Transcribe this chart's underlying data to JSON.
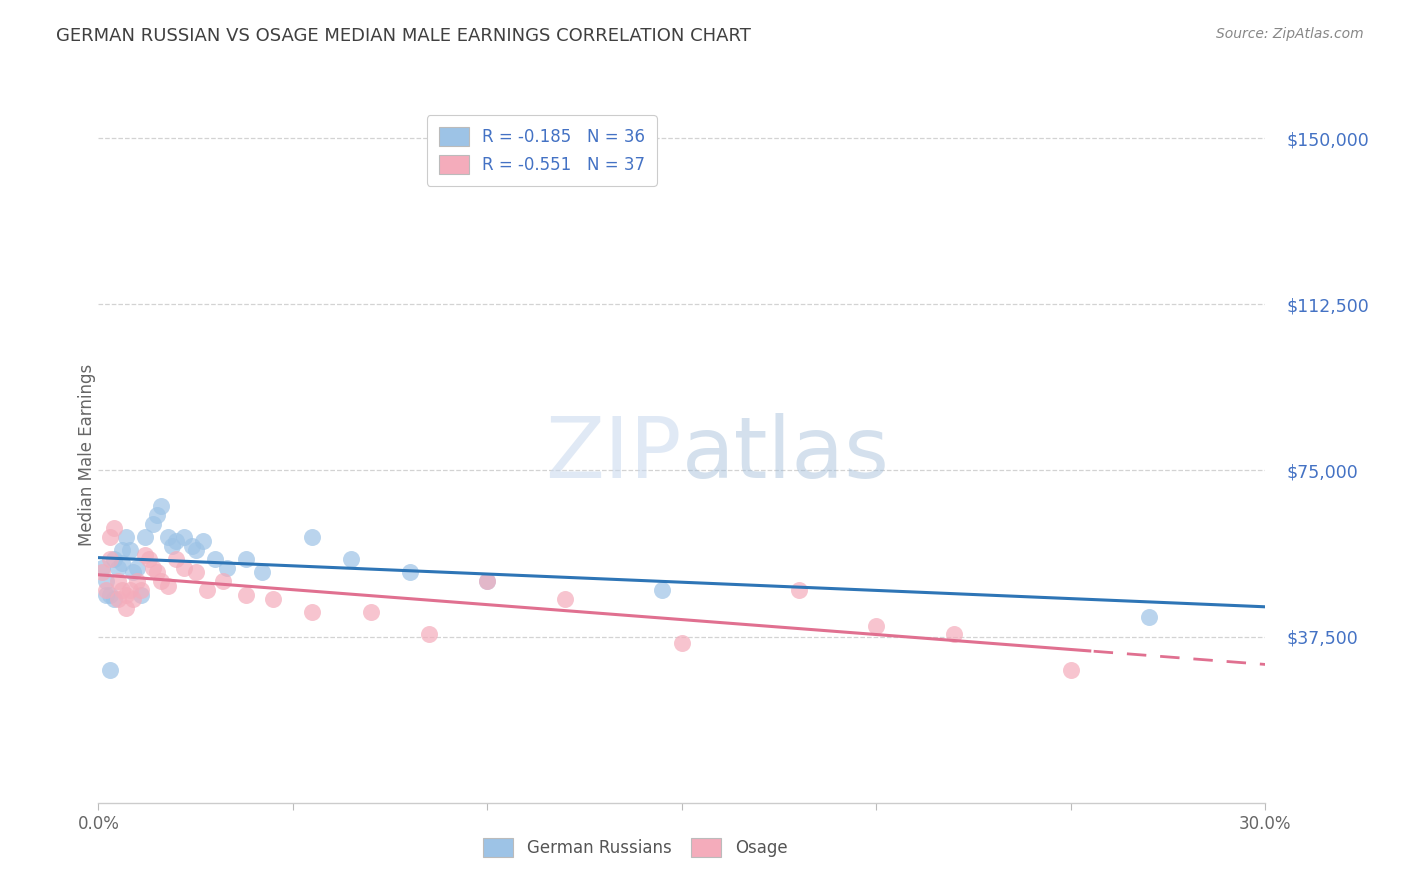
{
  "title": "GERMAN RUSSIAN VS OSAGE MEDIAN MALE EARNINGS CORRELATION CHART",
  "source": "Source: ZipAtlas.com",
  "ylabel": "Median Male Earnings",
  "xlim": [
    0.0,
    0.3
  ],
  "ylim": [
    0,
    157000
  ],
  "yticks": [
    37500,
    75000,
    112500,
    150000
  ],
  "xticks": [
    0.0,
    0.05,
    0.1,
    0.15,
    0.2,
    0.25,
    0.3
  ],
  "xtick_labels": [
    "0.0%",
    "",
    "",
    "",
    "",
    "",
    "30.0%"
  ],
  "ytick_labels": [
    "$37,500",
    "$75,000",
    "$112,500",
    "$150,000"
  ],
  "legend_entries_label": [
    "R = -0.185   N = 36",
    "R = -0.551   N = 37"
  ],
  "legend_bottom": [
    "German Russians",
    "Osage"
  ],
  "blue_scatter_color": "#9dc3e6",
  "pink_scatter_color": "#f4acbb",
  "blue_line_color": "#2e75b6",
  "pink_line_color": "#e07090",
  "background_color": "#ffffff",
  "grid_color": "#c8c8c8",
  "title_color": "#404040",
  "source_color": "#888888",
  "ytick_color": "#4472c4",
  "xtick_color": "#666666",
  "watermark_color": "#d6e4f5",
  "blue_points_x": [
    0.001,
    0.002,
    0.002,
    0.003,
    0.004,
    0.004,
    0.005,
    0.006,
    0.006,
    0.007,
    0.008,
    0.009,
    0.01,
    0.011,
    0.012,
    0.014,
    0.015,
    0.016,
    0.018,
    0.019,
    0.02,
    0.022,
    0.024,
    0.025,
    0.027,
    0.03,
    0.033,
    0.038,
    0.042,
    0.055,
    0.065,
    0.08,
    0.1,
    0.145,
    0.27,
    0.003
  ],
  "blue_points_y": [
    53000,
    50000,
    47000,
    47000,
    46000,
    55000,
    53000,
    57000,
    54000,
    60000,
    57000,
    52000,
    53000,
    47000,
    60000,
    63000,
    65000,
    67000,
    60000,
    58000,
    59000,
    60000,
    58000,
    57000,
    59000,
    55000,
    53000,
    55000,
    52000,
    60000,
    55000,
    52000,
    50000,
    48000,
    42000,
    30000
  ],
  "pink_points_x": [
    0.001,
    0.002,
    0.003,
    0.003,
    0.004,
    0.005,
    0.006,
    0.007,
    0.007,
    0.008,
    0.009,
    0.01,
    0.011,
    0.012,
    0.013,
    0.014,
    0.015,
    0.016,
    0.018,
    0.02,
    0.022,
    0.025,
    0.028,
    0.032,
    0.038,
    0.045,
    0.055,
    0.07,
    0.085,
    0.1,
    0.12,
    0.15,
    0.18,
    0.2,
    0.22,
    0.25,
    0.005
  ],
  "pink_points_y": [
    52000,
    48000,
    55000,
    60000,
    62000,
    50000,
    48000,
    47000,
    44000,
    48000,
    46000,
    50000,
    48000,
    56000,
    55000,
    53000,
    52000,
    50000,
    49000,
    55000,
    53000,
    52000,
    48000,
    50000,
    47000,
    46000,
    43000,
    43000,
    38000,
    50000,
    46000,
    36000,
    48000,
    40000,
    38000,
    30000,
    46000
  ]
}
